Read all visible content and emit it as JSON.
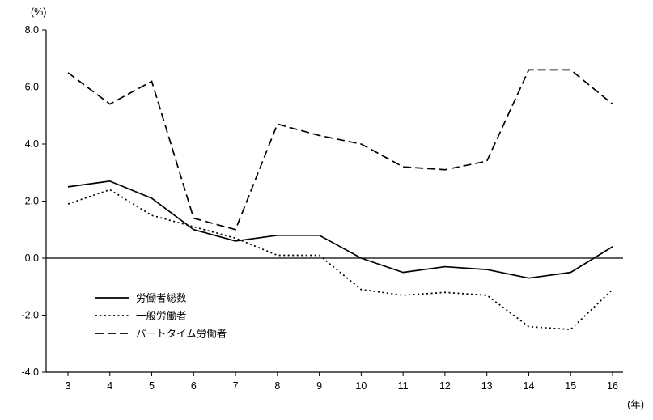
{
  "chart_data": {
    "type": "line",
    "title": "",
    "unit_y": "(%)",
    "unit_x": "(年)",
    "ylim": [
      -4.0,
      8.0
    ],
    "ytick_step": 2.0,
    "yticks": [
      "8.0",
      "6.0",
      "4.0",
      "2.0",
      "0.0",
      "-2.0",
      "-4.0"
    ],
    "categories": [
      "3",
      "4",
      "5",
      "6",
      "7",
      "8",
      "9",
      "10",
      "11",
      "12",
      "13",
      "14",
      "15",
      "16"
    ],
    "series": [
      {
        "name": "労働者総数",
        "style": "solid",
        "values": [
          2.5,
          2.7,
          2.1,
          1.0,
          0.6,
          0.8,
          0.8,
          0.0,
          -0.5,
          -0.3,
          -0.4,
          -0.7,
          -0.5,
          0.4
        ]
      },
      {
        "name": "一般労働者",
        "style": "dotted",
        "values": [
          1.9,
          2.4,
          1.5,
          1.1,
          0.7,
          0.1,
          0.1,
          -1.1,
          -1.3,
          -1.2,
          -1.3,
          -2.4,
          -2.5,
          -1.1
        ]
      },
      {
        "name": "パートタイム労働者",
        "style": "dashed",
        "values": [
          6.5,
          5.4,
          6.2,
          1.4,
          1.0,
          4.7,
          4.3,
          4.0,
          3.2,
          3.1,
          3.4,
          6.6,
          6.6,
          5.4
        ]
      }
    ],
    "legend_position": "inside-bottom-left",
    "grid": false,
    "line_color": "#000000",
    "background_color": "#ffffff"
  }
}
